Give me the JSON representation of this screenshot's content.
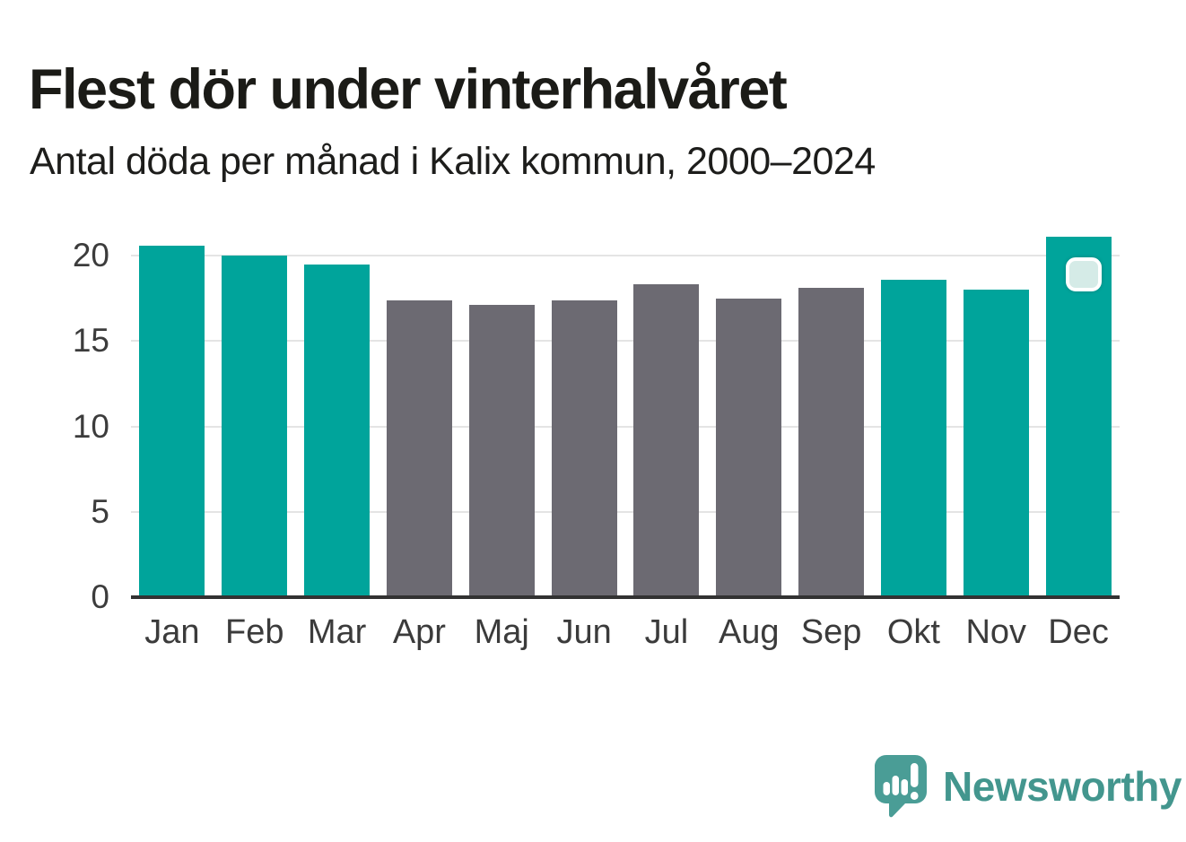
{
  "chart": {
    "title": "Flest dör under vinterhalvåret",
    "subtitle": "Antal döda per månad i Kalix kommun, 2000–2024"
  },
  "chart_data": {
    "type": "bar",
    "title": "Flest dör under vinterhalvåret",
    "subtitle": "Antal döda per månad i Kalix kommun, 2000–2024",
    "categories": [
      "Jan",
      "Feb",
      "Mar",
      "Apr",
      "Maj",
      "Jun",
      "Jul",
      "Aug",
      "Sep",
      "Okt",
      "Nov",
      "Dec"
    ],
    "values": [
      20.6,
      20.0,
      19.5,
      17.4,
      17.1,
      17.4,
      18.3,
      17.5,
      18.1,
      18.6,
      18.0,
      21.1
    ],
    "highlighted": [
      true,
      true,
      true,
      false,
      false,
      false,
      false,
      false,
      false,
      true,
      true,
      true
    ],
    "colors": {
      "highlight": "#00a49b",
      "base": "#6c6a72",
      "grid": "#e4e4e4",
      "axis": "#323232",
      "tick_text": "#3b3b3b"
    },
    "yticks": [
      0,
      5,
      10,
      15,
      20
    ],
    "ylim": [
      0,
      22
    ],
    "xlabel": "",
    "ylabel": "",
    "grid": true,
    "legend": "none",
    "annotation_marker_month": "Dec"
  },
  "footer": {
    "brand": "Newsworthy",
    "brand_color": "#43968e",
    "logo_color": "#4a9d96",
    "logo_icon": "newsworthy-speech-bubble-chart-icon"
  }
}
